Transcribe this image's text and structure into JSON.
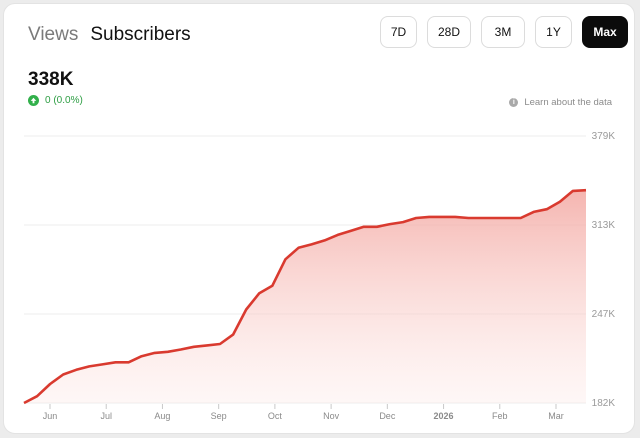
{
  "tabs": [
    {
      "label": "Views",
      "active": false
    },
    {
      "label": "Subscribers",
      "active": true
    }
  ],
  "ranges": [
    {
      "label": "7D",
      "selected": false
    },
    {
      "label": "28D",
      "selected": false
    },
    {
      "label": "3M",
      "selected": false
    },
    {
      "label": "1Y",
      "selected": false
    },
    {
      "label": "Max",
      "selected": true
    }
  ],
  "stats": {
    "value": "338K",
    "change": "0 (0.0%)",
    "change_icon": "arrow-up-icon"
  },
  "learn": {
    "label": "Learn about the data",
    "icon": "info-icon"
  },
  "colors": {
    "line": "#d93a2f",
    "fill": "#f5b5b0",
    "accent": "#0b0b0b",
    "positive": "#32b04b"
  },
  "chart_data": {
    "type": "area",
    "x_tick_labels": [
      "Jun",
      "Jul",
      "Aug",
      "Sep",
      "Oct",
      "Nov",
      "Dec",
      "2026",
      "Feb",
      "Mar"
    ],
    "y_tick_labels": [
      "379K",
      "313K",
      "247K",
      "182K"
    ],
    "ylim": [
      182000,
      379000
    ],
    "grid": true,
    "values": [
      182000,
      187000,
      196000,
      203000,
      206500,
      209000,
      210500,
      212000,
      212000,
      216500,
      219000,
      219800,
      221500,
      223500,
      224500,
      225500,
      232500,
      251000,
      263000,
      268500,
      288000,
      296500,
      299000,
      302000,
      306000,
      309000,
      312000,
      312000,
      314000,
      315500,
      318500,
      319300,
      319300,
      319300,
      318500,
      318500,
      318500,
      318500,
      318500,
      323000,
      325000,
      330500,
      338500,
      339000
    ]
  }
}
